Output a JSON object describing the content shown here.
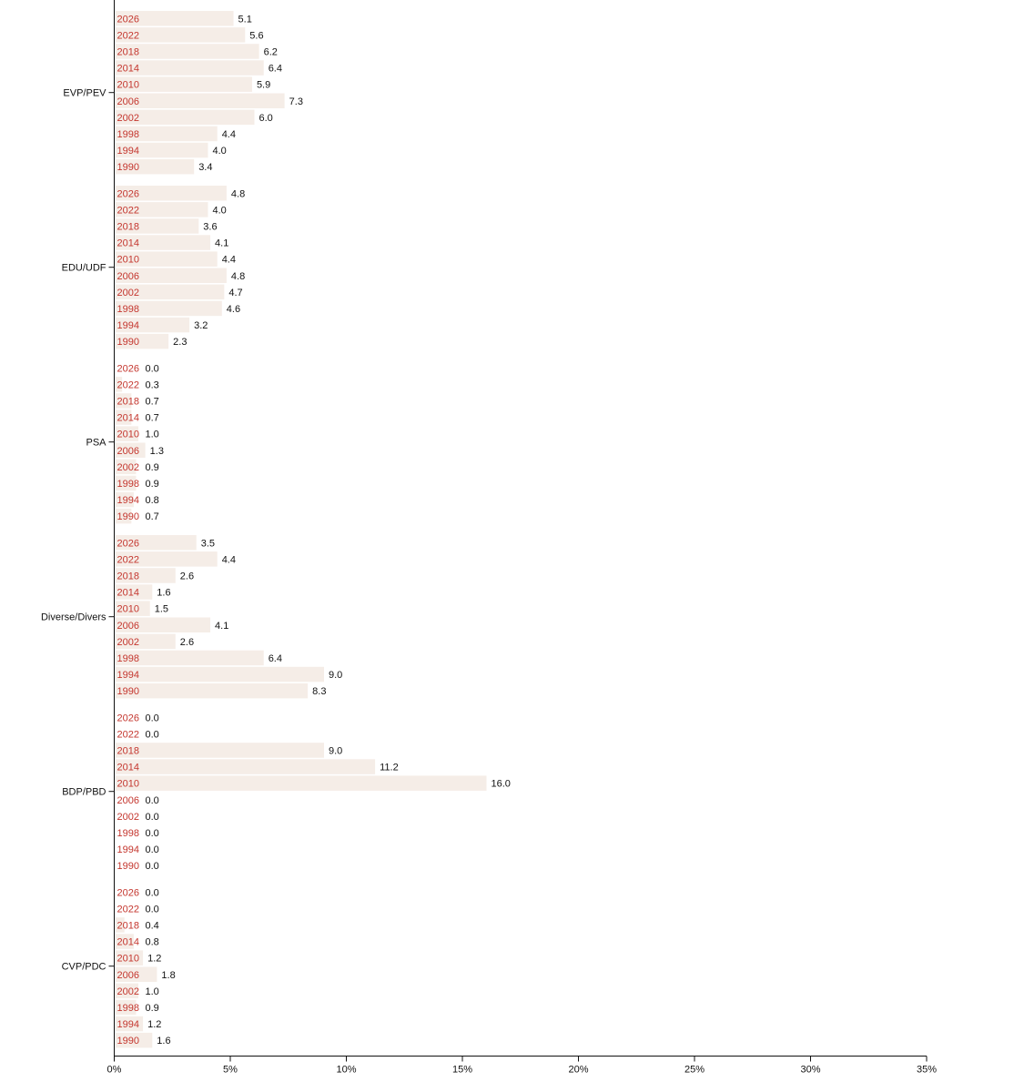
{
  "chart_data": {
    "type": "bar",
    "orientation": "horizontal",
    "title": "",
    "xlabel": "",
    "ylabel": "",
    "xlim": [
      0,
      35
    ],
    "x_ticks": [
      "0%",
      "5%",
      "10%",
      "15%",
      "20%",
      "25%",
      "30%",
      "35%"
    ],
    "x_tick_values": [
      0,
      5,
      10,
      15,
      20,
      25,
      30,
      35
    ],
    "grid": false,
    "colors": {
      "bar": "#f5ede7",
      "year_text": "#c4362e",
      "text": "#111111",
      "axis": "#111111"
    },
    "groups": [
      {
        "name": "EVP/PEV",
        "years": [
          "2026",
          "2022",
          "2018",
          "2014",
          "2010",
          "2006",
          "2002",
          "1998",
          "1994",
          "1990"
        ],
        "values": [
          5.1,
          5.6,
          6.2,
          6.4,
          5.9,
          7.3,
          6.0,
          4.4,
          4.0,
          3.4
        ],
        "labels": [
          "5.1",
          "5.6",
          "6.2",
          "6.4",
          "5.9",
          "7.3",
          "6.0",
          "4.4",
          "4.0",
          "3.4"
        ]
      },
      {
        "name": "EDU/UDF",
        "years": [
          "2026",
          "2022",
          "2018",
          "2014",
          "2010",
          "2006",
          "2002",
          "1998",
          "1994",
          "1990"
        ],
        "values": [
          4.8,
          4.0,
          3.6,
          4.1,
          4.4,
          4.8,
          4.7,
          4.6,
          3.2,
          2.3
        ],
        "labels": [
          "4.8",
          "4.0",
          "3.6",
          "4.1",
          "4.4",
          "4.8",
          "4.7",
          "4.6",
          "3.2",
          "2.3"
        ]
      },
      {
        "name": "PSA",
        "years": [
          "2026",
          "2022",
          "2018",
          "2014",
          "2010",
          "2006",
          "2002",
          "1998",
          "1994",
          "1990"
        ],
        "values": [
          0.0,
          0.3,
          0.7,
          0.7,
          1.0,
          1.3,
          0.9,
          0.9,
          0.8,
          0.7
        ],
        "labels": [
          "0.0",
          "0.3",
          "0.7",
          "0.7",
          "1.0",
          "1.3",
          "0.9",
          "0.9",
          "0.8",
          "0.7"
        ]
      },
      {
        "name": "Diverse/Divers",
        "years": [
          "2026",
          "2022",
          "2018",
          "2014",
          "2010",
          "2006",
          "2002",
          "1998",
          "1994",
          "1990"
        ],
        "values": [
          3.5,
          4.4,
          2.6,
          1.6,
          1.5,
          4.1,
          2.6,
          6.4,
          9.0,
          8.3
        ],
        "labels": [
          "3.5",
          "4.4",
          "2.6",
          "1.6",
          "1.5",
          "4.1",
          "2.6",
          "6.4",
          "9.0",
          "8.3"
        ]
      },
      {
        "name": "BDP/PBD",
        "years": [
          "2026",
          "2022",
          "2018",
          "2014",
          "2010",
          "2006",
          "2002",
          "1998",
          "1994",
          "1990"
        ],
        "values": [
          0.0,
          0.0,
          9.0,
          11.2,
          16.0,
          0.0,
          0.0,
          0.0,
          0.0,
          0.0
        ],
        "labels": [
          "0.0",
          "0.0",
          "9.0",
          "11.2",
          "16.0",
          "0.0",
          "0.0",
          "0.0",
          "0.0",
          "0.0"
        ]
      },
      {
        "name": "CVP/PDC",
        "years": [
          "2026",
          "2022",
          "2018",
          "2014",
          "2010",
          "2006",
          "2002",
          "1998",
          "1994",
          "1990"
        ],
        "values": [
          0.0,
          0.0,
          0.4,
          0.8,
          1.2,
          1.8,
          1.0,
          0.9,
          1.2,
          1.6
        ],
        "labels": [
          "0.0",
          "0.0",
          "0.4",
          "0.8",
          "1.2",
          "1.8",
          "1.0",
          "0.9",
          "1.2",
          "1.6"
        ]
      }
    ]
  }
}
